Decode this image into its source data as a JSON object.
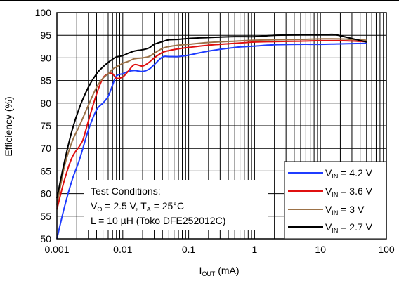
{
  "chart_data": {
    "type": "line",
    "xscale": "log",
    "xlim": [
      0.001,
      100
    ],
    "ylim": [
      50,
      100
    ],
    "grid": true,
    "xlabel": {
      "main": "I",
      "sub": "OUT",
      "rest": " (mA)"
    },
    "ylabel": "Efficiency (%)",
    "xticks": [
      {
        "value": 0.001,
        "label": "0.001"
      },
      {
        "value": 0.01,
        "label": "0.01"
      },
      {
        "value": 0.1,
        "label": "0.1"
      },
      {
        "value": 1,
        "label": "1"
      },
      {
        "value": 10,
        "label": "10"
      },
      {
        "value": 100,
        "label": "100"
      }
    ],
    "yticks": [
      {
        "value": 50,
        "label": "50"
      },
      {
        "value": 55,
        "label": "55"
      },
      {
        "value": 60,
        "label": "60"
      },
      {
        "value": 65,
        "label": "65"
      },
      {
        "value": 70,
        "label": "70"
      },
      {
        "value": 75,
        "label": "75"
      },
      {
        "value": 80,
        "label": "80"
      },
      {
        "value": 85,
        "label": "85"
      },
      {
        "value": 90,
        "label": "90"
      },
      {
        "value": 95,
        "label": "95"
      },
      {
        "value": 100,
        "label": "100"
      }
    ],
    "legend_position": "bottom-right",
    "conditions": {
      "line1": "Test Conditions:",
      "line2": {
        "a": "V",
        "a_sub": "O",
        "b": " = 2.5 V, T",
        "b_sub": "A",
        "c": " = 25°C"
      },
      "line3": "L = 10 µH (Toko DFE252012C)"
    },
    "series": [
      {
        "id": "vin42",
        "legend": {
          "main": "V",
          "sub": "IN",
          "rest": " = 4.2 V"
        },
        "color": "#1f3cff",
        "x": [
          0.001,
          0.0013,
          0.0017,
          0.0022,
          0.003,
          0.004,
          0.005,
          0.006,
          0.007,
          0.008,
          0.01,
          0.012,
          0.015,
          0.02,
          0.025,
          0.03,
          0.04,
          0.05,
          0.07,
          0.1,
          0.2,
          0.5,
          1,
          2,
          5,
          10,
          20,
          50
        ],
        "y": [
          50,
          57,
          63,
          67.5,
          74,
          78.5,
          80,
          81.5,
          84,
          86,
          86.5,
          87,
          87.2,
          87,
          87.5,
          88.5,
          90.2,
          90.3,
          90.3,
          90.6,
          91.5,
          92.3,
          92.6,
          92.9,
          93,
          93,
          93.1,
          93.2
        ]
      },
      {
        "id": "vin36",
        "legend": {
          "main": "V",
          "sub": "IN",
          "rest": " = 3.6 V"
        },
        "color": "#e01010",
        "x": [
          0.001,
          0.0013,
          0.0017,
          0.0022,
          0.0025,
          0.003,
          0.004,
          0.005,
          0.006,
          0.007,
          0.008,
          0.01,
          0.012,
          0.015,
          0.02,
          0.025,
          0.03,
          0.04,
          0.05,
          0.07,
          0.1,
          0.2,
          0.5,
          1,
          2,
          5,
          10,
          20,
          50
        ],
        "y": [
          56.5,
          63,
          68,
          70.5,
          72,
          76,
          82,
          85.5,
          86.5,
          86.5,
          85.5,
          85.8,
          87,
          88.5,
          88.2,
          89,
          90,
          91.2,
          91.6,
          92,
          92.3,
          92.8,
          93.2,
          93.5,
          93.6,
          93.7,
          93.8,
          93.8,
          93.6
        ]
      },
      {
        "id": "vin3",
        "legend": {
          "main": "V",
          "sub": "IN",
          "rest": " = 3 V"
        },
        "color": "#9c7248",
        "x": [
          0.001,
          0.0013,
          0.0017,
          0.0022,
          0.003,
          0.004,
          0.005,
          0.006,
          0.007,
          0.008,
          0.01,
          0.012,
          0.015,
          0.02,
          0.025,
          0.03,
          0.04,
          0.05,
          0.07,
          0.1,
          0.2,
          0.5,
          1,
          2,
          5,
          10,
          20,
          50
        ],
        "y": [
          57.5,
          66,
          71.5,
          75,
          79.5,
          83.5,
          85.5,
          86.5,
          87.5,
          88,
          88.8,
          89.2,
          89.8,
          90,
          90.3,
          91,
          92.1,
          92.5,
          92.8,
          93,
          93.4,
          93.7,
          93.9,
          94,
          94.1,
          94.2,
          94.2,
          93.9
        ]
      },
      {
        "id": "vin27",
        "legend": {
          "main": "V",
          "sub": "IN",
          "rest": " = 2.7 V"
        },
        "color": "#000000",
        "x": [
          0.001,
          0.0013,
          0.0017,
          0.0022,
          0.003,
          0.004,
          0.005,
          0.006,
          0.007,
          0.008,
          0.01,
          0.012,
          0.015,
          0.02,
          0.025,
          0.03,
          0.04,
          0.05,
          0.07,
          0.1,
          0.2,
          0.5,
          1,
          2,
          5,
          10,
          15,
          20,
          50
        ],
        "y": [
          59,
          67,
          74,
          79,
          83.5,
          86.5,
          88,
          89,
          89.7,
          90.2,
          90.5,
          91,
          91.5,
          91.8,
          92.2,
          93,
          93.6,
          94,
          94.1,
          94.3,
          94.5,
          94.7,
          94.7,
          95,
          95.1,
          95.1,
          95.2,
          94.9,
          93.5
        ]
      }
    ]
  }
}
